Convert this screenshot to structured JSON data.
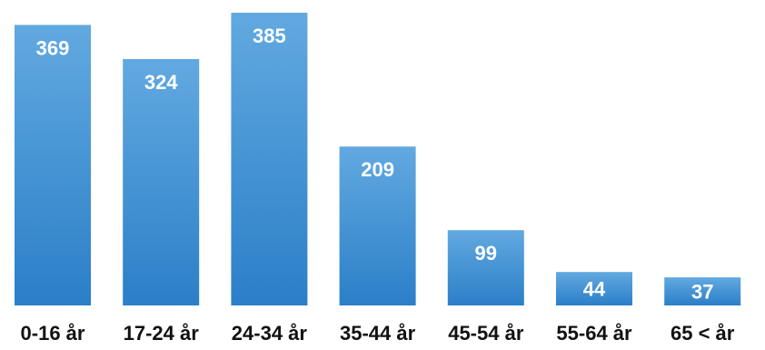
{
  "chart_data": {
    "type": "bar",
    "categories": [
      "0-16 år",
      "17-24 år",
      "24-34 år",
      "35-44 år",
      "45-54 år",
      "55-64 år",
      "65 < år"
    ],
    "values": [
      369,
      324,
      385,
      209,
      99,
      44,
      37
    ],
    "title": "",
    "xlabel": "",
    "ylabel": "",
    "ylim": [
      0,
      385
    ],
    "grid": false,
    "legend": "none",
    "data_labels": true
  },
  "colors": {
    "bar_top": "#62a9e0",
    "bar_bottom": "#2b7fc8",
    "label_text": "#111111",
    "value_text": "#ffffff"
  }
}
